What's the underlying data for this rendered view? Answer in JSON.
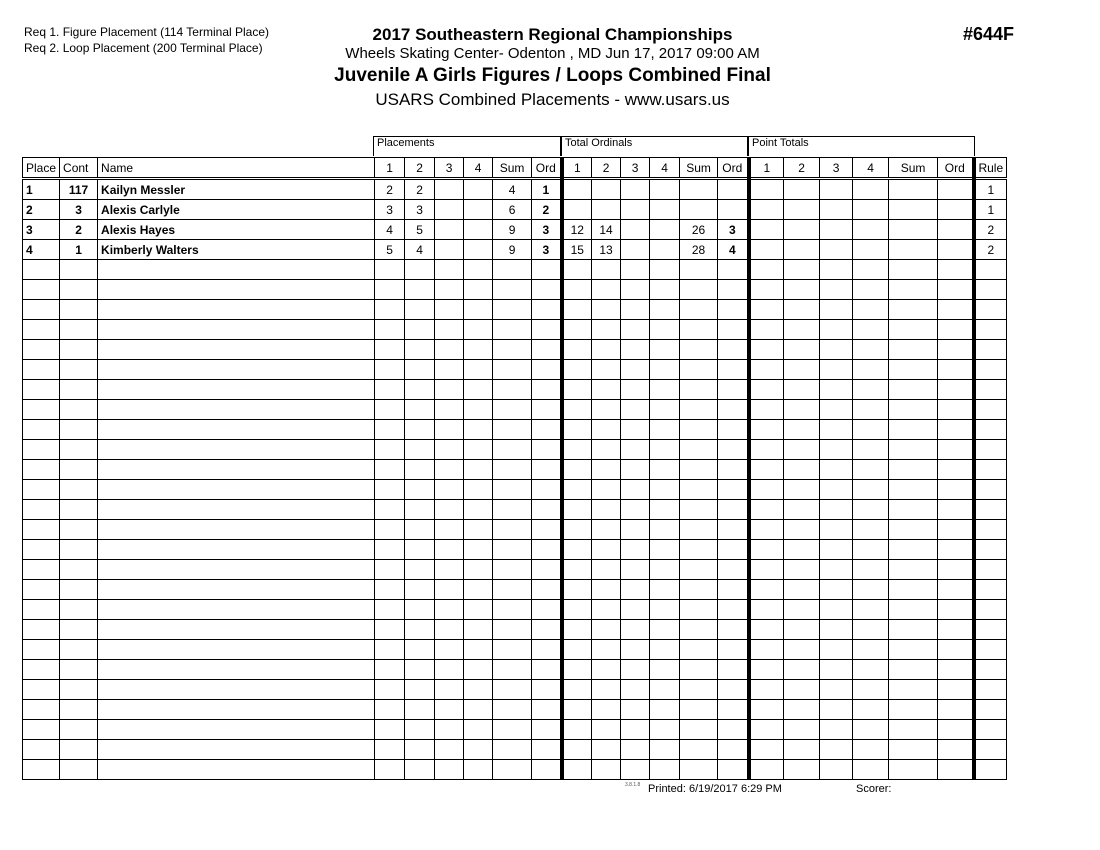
{
  "requirements": [
    "Req  1.  Figure Placement (114 Terminal Place)",
    "Req  2.  Loop Placement (200 Terminal Place)"
  ],
  "header": {
    "title": "2017 Southeastern Regional Championships",
    "venue": "Wheels Skating Center- Odenton , MD  Jun 17, 2017  09:00 AM",
    "event": "Juvenile A Girls Figures / Loops Combined Final",
    "subtitle": "USARS Combined Placements - www.usars.us",
    "event_number": "#644F"
  },
  "groups": [
    "Placements",
    "Total Ordinals",
    "Point Totals"
  ],
  "columns": [
    "Place",
    "Cont",
    "Name",
    "1",
    "2",
    "3",
    "4",
    "Sum",
    "Ord",
    "1",
    "2",
    "3",
    "4",
    "Sum",
    "Ord",
    "1",
    "2",
    "3",
    "4",
    "Sum",
    "Ord",
    "Rule"
  ],
  "rows": [
    [
      "1",
      "117",
      "Kailyn Messler",
      "2",
      "2",
      "",
      "",
      "4",
      "1",
      "",
      "",
      "",
      "",
      "",
      "",
      "",
      "",
      "",
      "",
      "",
      "",
      "1"
    ],
    [
      "2",
      "3",
      "Alexis Carlyle",
      "3",
      "3",
      "",
      "",
      "6",
      "2",
      "",
      "",
      "",
      "",
      "",
      "",
      "",
      "",
      "",
      "",
      "",
      "",
      "1"
    ],
    [
      "3",
      "2",
      "Alexis Hayes",
      "4",
      "5",
      "",
      "",
      "9",
      "3",
      "12",
      "14",
      "",
      "",
      "26",
      "3",
      "",
      "",
      "",
      "",
      "",
      "",
      "2"
    ],
    [
      "4",
      "1",
      "Kimberly Walters",
      "5",
      "4",
      "",
      "",
      "9",
      "3",
      "15",
      "13",
      "",
      "",
      "28",
      "4",
      "",
      "",
      "",
      "",
      "",
      "",
      "2"
    ]
  ],
  "empty_rows": 26,
  "footer": {
    "version": "3.8.1.8",
    "printed": "Printed:  6/19/2017  6:29 PM",
    "scorer": "Scorer:"
  }
}
